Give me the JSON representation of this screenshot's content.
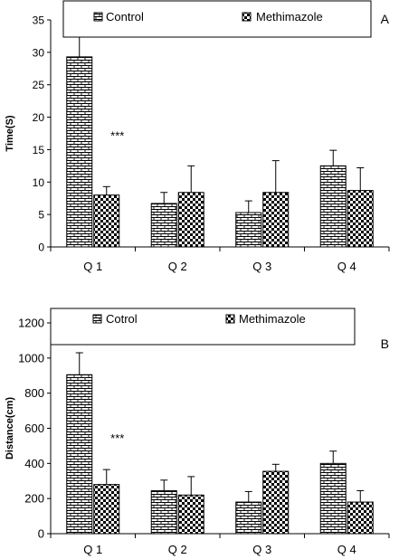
{
  "colors": {
    "axis": "#000000",
    "bar_fill": "#ffffff",
    "pattern": "#000000"
  },
  "chart_data": [
    {
      "panel_label": "A",
      "type": "bar",
      "categories": [
        "Q 1",
        "Q 2",
        "Q 3",
        "Q 4"
      ],
      "ylabel": "Time(S)",
      "xlabel": "",
      "ylim": [
        0,
        35
      ],
      "yticks": [
        0,
        5,
        10,
        15,
        20,
        25,
        30,
        35
      ],
      "grid": false,
      "legend_position": "top",
      "series": [
        {
          "name": "Control",
          "pattern": "brick",
          "values": [
            29.3,
            6.7,
            5.3,
            12.5
          ],
          "errors": [
            3.5,
            1.7,
            1.8,
            2.4
          ]
        },
        {
          "name": "Methimazole",
          "pattern": "checker",
          "values": [
            8.0,
            8.4,
            8.4,
            8.7
          ],
          "errors": [
            1.3,
            4.1,
            4.9,
            3.5
          ]
        }
      ],
      "annotations": [
        {
          "text": "***",
          "category": "Q 1",
          "value": 16.5
        }
      ]
    },
    {
      "panel_label": "B",
      "type": "bar",
      "categories": [
        "Q 1",
        "Q 2",
        "Q 3",
        "Q 4"
      ],
      "ylabel": "Distance(cm)",
      "xlabel": "",
      "ylim": [
        0,
        1200
      ],
      "yticks": [
        0,
        200,
        400,
        600,
        800,
        1000,
        1200
      ],
      "grid": false,
      "legend_position": "top",
      "series": [
        {
          "name": "Cotrol",
          "pattern": "brick",
          "values": [
            905,
            245,
            180,
            400
          ],
          "errors": [
            125,
            60,
            60,
            70
          ]
        },
        {
          "name": "Methimazole",
          "pattern": "checker",
          "values": [
            280,
            220,
            355,
            180
          ],
          "errors": [
            85,
            105,
            40,
            65
          ]
        }
      ],
      "annotations": [
        {
          "text": "***",
          "category": "Q 1",
          "value": 520
        }
      ]
    }
  ]
}
